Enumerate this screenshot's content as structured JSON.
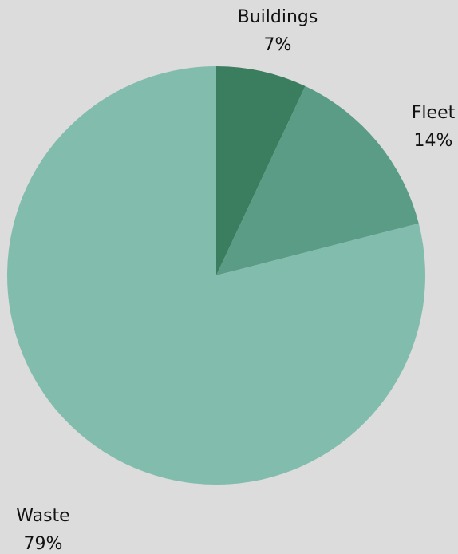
{
  "chart_data": {
    "type": "pie",
    "slices": [
      {
        "label": "Buildings",
        "percent_label": "7%",
        "value": 7,
        "color": "#3b7d5f"
      },
      {
        "label": "Fleet",
        "percent_label": "14%",
        "value": 14,
        "color": "#5b9c86"
      },
      {
        "label": "Waste",
        "percent_label": "79%",
        "value": 79,
        "color": "#82bcad"
      }
    ],
    "start_angle": "12 o'clock",
    "direction": "clockwise",
    "legend": "none",
    "background": "#dcdcdc"
  }
}
